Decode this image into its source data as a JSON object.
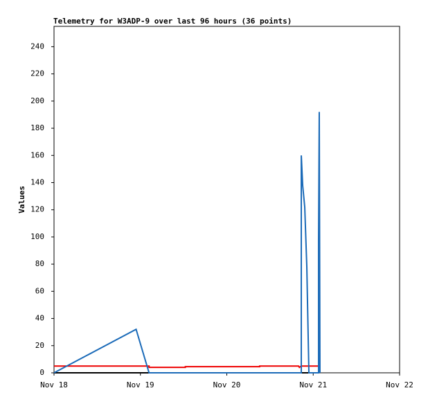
{
  "chart_data": {
    "type": "line",
    "title": "Telemetry for W3ADP-9 over last 96 hours (36 points)",
    "y_label": "Values",
    "xlim": [
      0,
      4
    ],
    "xticks": [
      {
        "value": 0,
        "label": "Nov 18"
      },
      {
        "value": 1,
        "label": "Nov 19"
      },
      {
        "value": 2,
        "label": "Nov 20"
      },
      {
        "value": 3,
        "label": "Nov 21"
      },
      {
        "value": 4,
        "label": "Nov 22"
      }
    ],
    "ylim": [
      0,
      255
    ],
    "yticks": [
      0,
      20,
      40,
      60,
      80,
      100,
      120,
      140,
      160,
      180,
      200,
      220,
      240
    ],
    "series": [
      {
        "color": "#000000",
        "x": [
          0,
          3.05
        ],
        "values": [
          0,
          0
        ]
      },
      {
        "color": "#ee0000",
        "x": [
          0,
          1.1,
          1.1,
          1.52,
          1.52,
          2.38,
          2.38,
          2.83,
          2.84,
          2.86,
          3.07
        ],
        "values": [
          5,
          5,
          4,
          4,
          4.5,
          4.5,
          5,
          5,
          4,
          5,
          5
        ]
      },
      {
        "color": "#1a6ab8",
        "x": [
          0,
          0.95,
          1.1,
          2.862,
          2.862,
          2.878,
          2.902,
          2.926,
          2.95,
          3.062,
          3.062,
          3.07,
          3.078
        ],
        "values": [
          0,
          32,
          0,
          0,
          160,
          138,
          122,
          78,
          0,
          0,
          97,
          192,
          0
        ]
      }
    ]
  }
}
